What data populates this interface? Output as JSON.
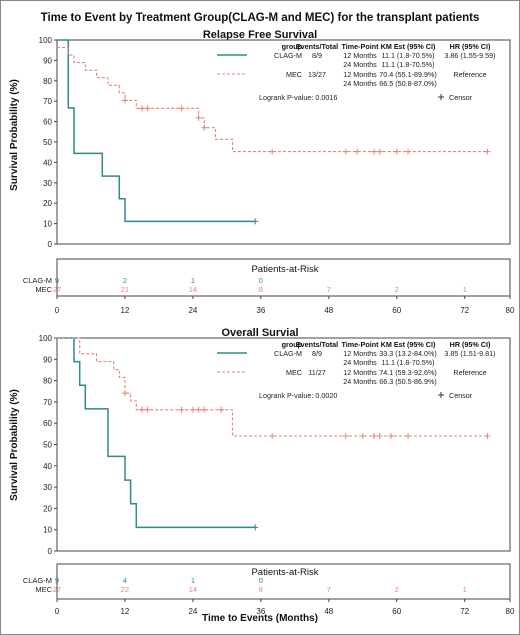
{
  "figure_title": "Time to Event by Treatment Group(CLAG-M and MEC) for the transplant patients",
  "xlabel": "Time to Events (Months)",
  "colors": {
    "clag": "#2e8b87",
    "mec": "#e8837b",
    "frame": "#444444"
  },
  "legend_header": {
    "group": "group",
    "events": "Events/Total",
    "tp": "Time-Point",
    "km": "KM Est (95% CI)",
    "hr": "HR (95% CI)"
  },
  "risk_header": "Patients-at-Risk",
  "censor_label": "Censor",
  "chart_data": [
    {
      "type": "line",
      "title": "Relapse Free Survival",
      "ylabel": "Survival Probability (%)",
      "xlim": [
        0,
        80
      ],
      "ylim": [
        0,
        100
      ],
      "x_ticks": [
        "0",
        "12",
        "24",
        "36",
        "48",
        "60",
        "72",
        "80"
      ],
      "y_ticks": [
        "0",
        "10",
        "20",
        "30",
        "40",
        "50",
        "60",
        "70",
        "80",
        "90",
        "100"
      ],
      "series": [
        {
          "name": "CLAG-M",
          "events": "8/9",
          "rows": [
            {
              "tp": "12 Months",
              "km": "11.1 (1.8-70.5%)",
              "hr": "3.86 (1.55-9.59)"
            },
            {
              "tp": "24 Months",
              "km": "11.1 (1.8-70.5%)",
              "hr": ""
            }
          ],
          "steps": [
            [
              0,
              100
            ],
            [
              2,
              100
            ],
            [
              2,
              66.7
            ],
            [
              3,
              66.7
            ],
            [
              3,
              44.4
            ],
            [
              8,
              44.4
            ],
            [
              8,
              33.3
            ],
            [
              11,
              33.3
            ],
            [
              11,
              22.2
            ],
            [
              12,
              22.2
            ],
            [
              12,
              11.1
            ],
            [
              35,
              11.1
            ]
          ],
          "censors": [
            [
              35,
              11.1
            ]
          ]
        },
        {
          "name": "MEC",
          "events": "13/27",
          "rows": [
            {
              "tp": "12 Months",
              "km": "70.4 (55.1-89.9%)",
              "hr": "Reference"
            },
            {
              "tp": "24 Months",
              "km": "66.5 (50.8-87.0%)",
              "hr": ""
            }
          ],
          "steps": [
            [
              0,
              96.3
            ],
            [
              2,
              96.3
            ],
            [
              2,
              92.6
            ],
            [
              3,
              92.6
            ],
            [
              3,
              88.9
            ],
            [
              5,
              88.9
            ],
            [
              5,
              85.2
            ],
            [
              7,
              85.2
            ],
            [
              7,
              81.5
            ],
            [
              9,
              81.5
            ],
            [
              9,
              77.8
            ],
            [
              11,
              77.8
            ],
            [
              11,
              74.1
            ],
            [
              12,
              74.1
            ],
            [
              12,
              70.4
            ],
            [
              14,
              70.4
            ],
            [
              14,
              66.5
            ],
            [
              25,
              66.5
            ],
            [
              25,
              61.8
            ],
            [
              26,
              61.8
            ],
            [
              26,
              57.0
            ],
            [
              28,
              57.0
            ],
            [
              28,
              51.3
            ],
            [
              31,
              51.3
            ],
            [
              31,
              45.3
            ],
            [
              76,
              45.3
            ]
          ],
          "censors": [
            [
              12,
              70.4
            ],
            [
              15,
              66.5
            ],
            [
              16,
              66.5
            ],
            [
              22,
              66.5
            ],
            [
              25,
              61.8
            ],
            [
              26,
              57.0
            ],
            [
              38,
              45.3
            ],
            [
              51,
              45.3
            ],
            [
              53,
              45.3
            ],
            [
              56,
              45.3
            ],
            [
              57,
              45.3
            ],
            [
              60,
              45.3
            ],
            [
              62,
              45.3
            ],
            [
              76,
              45.3
            ]
          ]
        }
      ],
      "logrank": "Logrank P-value: 0.0016",
      "risk": {
        "times": [
          0,
          12,
          24,
          36,
          48,
          60,
          72
        ],
        "CLAG-M": [
          "9",
          "2",
          "1",
          "0",
          "",
          "",
          ""
        ],
        "MEC": [
          "27",
          "21",
          "14",
          "8",
          "7",
          "2",
          "1"
        ]
      }
    },
    {
      "type": "line",
      "title": "Overall Survial",
      "ylabel": "Survival Probability (%)",
      "xlim": [
        0,
        80
      ],
      "ylim": [
        0,
        100
      ],
      "x_ticks": [
        "0",
        "12",
        "24",
        "36",
        "48",
        "60",
        "72",
        "80"
      ],
      "y_ticks": [
        "0",
        "10",
        "20",
        "30",
        "40",
        "50",
        "60",
        "70",
        "80",
        "90",
        "100"
      ],
      "series": [
        {
          "name": "CLAG-M",
          "events": "8/9",
          "rows": [
            {
              "tp": "12 Months",
              "km": "33.3 (13.2-84.0%)",
              "hr": "3.85 (1.51-9.81)"
            },
            {
              "tp": "24 Months",
              "km": "11.1 (1.8-70.5%)",
              "hr": ""
            }
          ],
          "steps": [
            [
              0,
              100
            ],
            [
              3,
              100
            ],
            [
              3,
              88.9
            ],
            [
              4,
              88.9
            ],
            [
              4,
              77.8
            ],
            [
              5,
              77.8
            ],
            [
              5,
              66.7
            ],
            [
              9,
              66.7
            ],
            [
              9,
              44.4
            ],
            [
              12,
              44.4
            ],
            [
              12,
              33.3
            ],
            [
              13,
              33.3
            ],
            [
              13,
              22.2
            ],
            [
              14,
              22.2
            ],
            [
              14,
              11.1
            ],
            [
              35,
              11.1
            ]
          ],
          "censors": [
            [
              35,
              11.1
            ]
          ]
        },
        {
          "name": "MEC",
          "events": "11/27",
          "rows": [
            {
              "tp": "12 Months",
              "km": "74.1 (59.3-92.6%)",
              "hr": "Reference"
            },
            {
              "tp": "24 Months",
              "km": "66.3 (50.5-86.9%)",
              "hr": ""
            }
          ],
          "steps": [
            [
              0,
              100
            ],
            [
              4,
              100
            ],
            [
              4,
              92.6
            ],
            [
              7,
              92.6
            ],
            [
              7,
              88.9
            ],
            [
              10,
              88.9
            ],
            [
              10,
              85.2
            ],
            [
              11,
              85.2
            ],
            [
              11,
              81.5
            ],
            [
              12,
              81.5
            ],
            [
              12,
              74.1
            ],
            [
              13,
              74.1
            ],
            [
              13,
              70.4
            ],
            [
              14,
              70.4
            ],
            [
              14,
              66.3
            ],
            [
              31,
              66.3
            ],
            [
              31,
              54.0
            ],
            [
              76,
              54.0
            ]
          ],
          "censors": [
            [
              12,
              74.1
            ],
            [
              15,
              66.3
            ],
            [
              16,
              66.3
            ],
            [
              22,
              66.3
            ],
            [
              24,
              66.3
            ],
            [
              25,
              66.3
            ],
            [
              26,
              66.3
            ],
            [
              29,
              66.3
            ],
            [
              38,
              54.0
            ],
            [
              51,
              54.0
            ],
            [
              54,
              54.0
            ],
            [
              56,
              54.0
            ],
            [
              57,
              54.0
            ],
            [
              59,
              54.0
            ],
            [
              62,
              54.0
            ],
            [
              76,
              54.0
            ]
          ]
        }
      ],
      "logrank": "Logrank P-value: 0.0020",
      "risk": {
        "times": [
          0,
          12,
          24,
          36,
          48,
          60,
          72
        ],
        "CLAG-M": [
          "9",
          "4",
          "1",
          "0",
          "",
          "",
          ""
        ],
        "MEC": [
          "27",
          "22",
          "14",
          "8",
          "7",
          "2",
          "1"
        ]
      }
    }
  ]
}
